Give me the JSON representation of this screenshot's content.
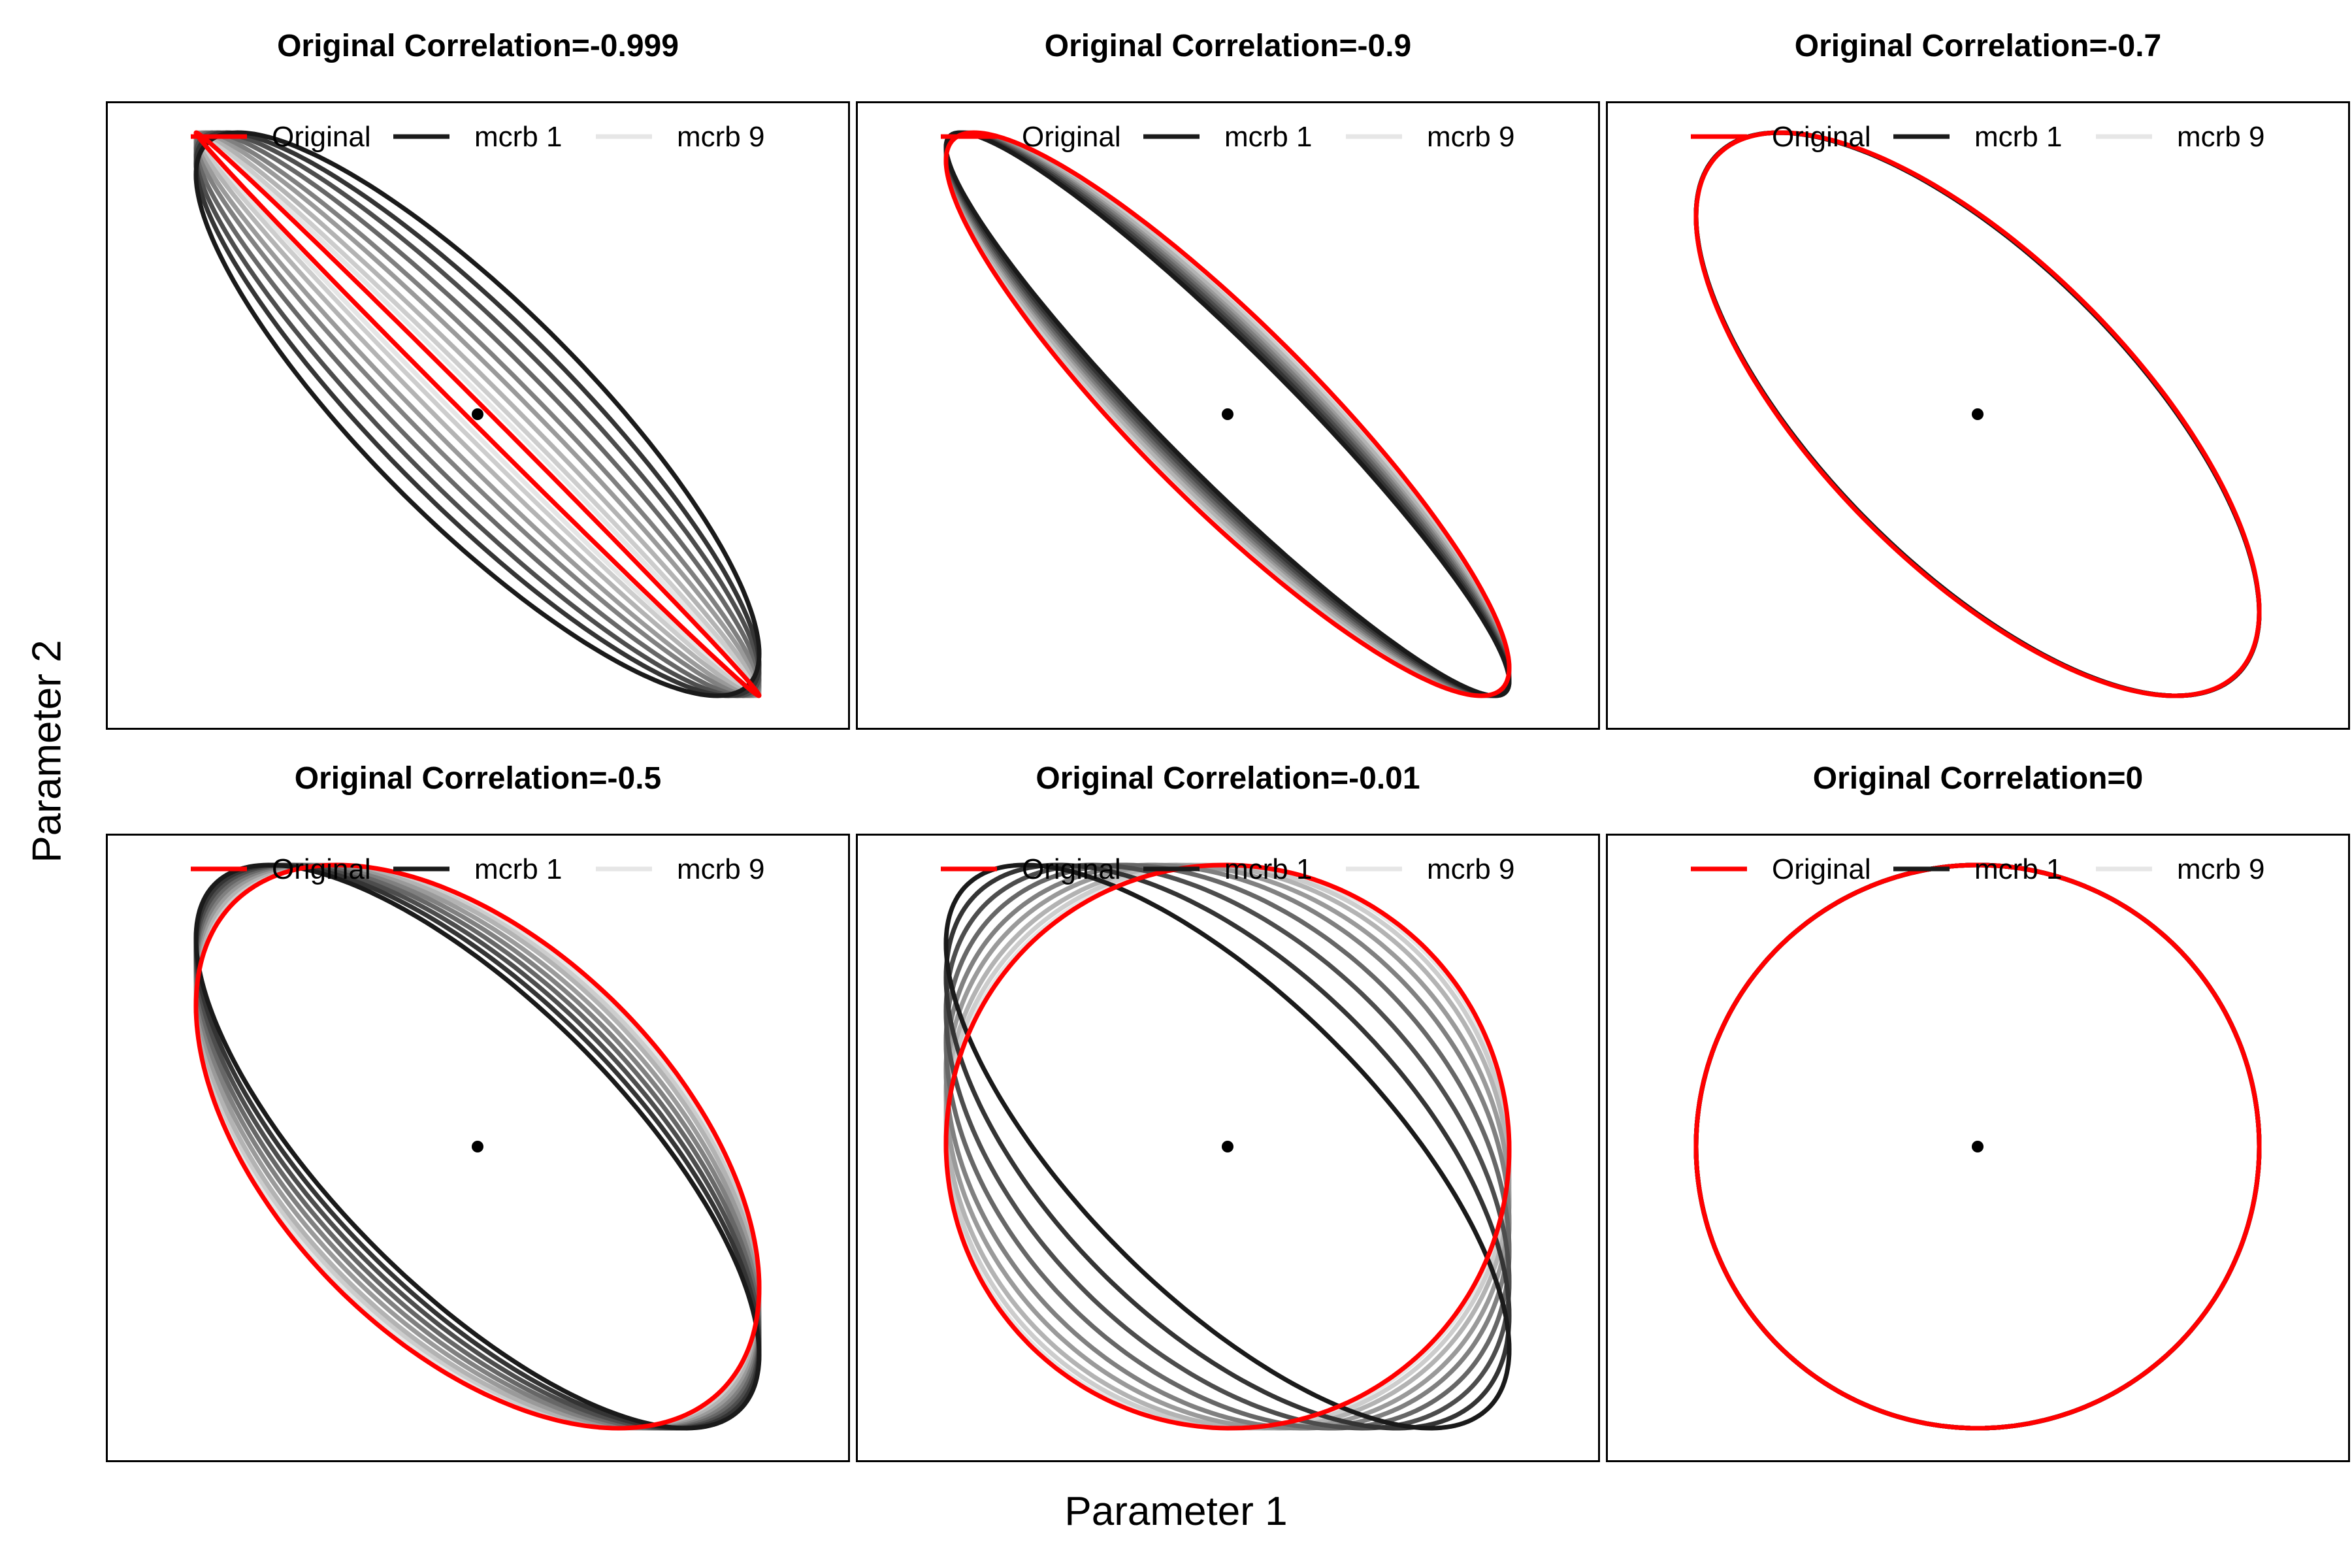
{
  "figure": {
    "xlabel": "Parameter 1",
    "ylabel": "Parameter 2"
  },
  "legend": {
    "placement": "top",
    "entries": [
      {
        "label": "Original",
        "color": "#ff0000"
      },
      {
        "label": "mcrb 1",
        "color": "#1a1a1a"
      },
      {
        "label": "mcrb 9",
        "color": "#e6e6e6"
      }
    ]
  },
  "colors": {
    "original": "#ff0000",
    "mcrb_dark": "#1a1a1a",
    "mcrb_light": "#e6e6e6",
    "center": "#000000"
  },
  "chart_data": [
    {
      "type": "line",
      "title": "Original Correlation=-0.999",
      "original_correlation": -0.999,
      "mcrb_correlations": [
        -0.85,
        -0.89,
        -0.92,
        -0.945,
        -0.965,
        -0.978,
        -0.988,
        -0.994,
        -0.997
      ],
      "center": [
        0,
        0
      ],
      "xlim": [
        -1.1,
        1.6
      ],
      "ylim": [
        -1.2,
        1.0
      ],
      "legend_position": "top",
      "grid": false
    },
    {
      "type": "line",
      "title": "Original Correlation=-0.9",
      "original_correlation": -0.9,
      "mcrb_correlations": [
        -0.95,
        -0.945,
        -0.94,
        -0.935,
        -0.93,
        -0.925,
        -0.918,
        -0.912,
        -0.906
      ],
      "center": [
        0,
        0
      ],
      "xlim": [
        -1.1,
        1.6
      ],
      "ylim": [
        -1.2,
        1.0
      ],
      "legend_position": "top",
      "grid": false
    },
    {
      "type": "line",
      "title": "Original Correlation=-0.7",
      "original_correlation": -0.7,
      "mcrb_correlations": [
        -0.705,
        -0.704,
        -0.704,
        -0.703,
        -0.702,
        -0.702,
        -0.701,
        -0.701,
        -0.7
      ],
      "center": [
        0,
        0
      ],
      "xlim": [
        -1.1,
        1.6
      ],
      "ylim": [
        -1.2,
        1.0
      ],
      "legend_position": "top",
      "grid": false
    },
    {
      "type": "line",
      "title": "Original Correlation=-0.5",
      "original_correlation": -0.5,
      "mcrb_correlations": [
        -0.74,
        -0.71,
        -0.68,
        -0.65,
        -0.62,
        -0.59,
        -0.56,
        -0.54,
        -0.52
      ],
      "center": [
        0,
        0
      ],
      "xlim": [
        -1.1,
        1.6
      ],
      "ylim": [
        -1.2,
        1.0
      ],
      "legend_position": "top",
      "grid": false
    },
    {
      "type": "line",
      "title": "Original Correlation=-0.01",
      "original_correlation": -0.01,
      "mcrb_correlations": [
        -0.72,
        -0.6,
        -0.48,
        -0.37,
        -0.27,
        -0.19,
        -0.12,
        -0.07,
        -0.03
      ],
      "center": [
        0,
        0
      ],
      "xlim": [
        -1.1,
        1.6
      ],
      "ylim": [
        -1.2,
        1.0
      ],
      "legend_position": "top",
      "grid": false
    },
    {
      "type": "line",
      "title": "Original Correlation=0",
      "original_correlation": 0,
      "mcrb_correlations": [
        0,
        0,
        0,
        0,
        0,
        0,
        0,
        0,
        0
      ],
      "center": [
        0,
        0
      ],
      "xlim": [
        -1.1,
        1.6
      ],
      "ylim": [
        -1.2,
        1.0
      ],
      "legend_position": "top",
      "grid": false
    }
  ]
}
